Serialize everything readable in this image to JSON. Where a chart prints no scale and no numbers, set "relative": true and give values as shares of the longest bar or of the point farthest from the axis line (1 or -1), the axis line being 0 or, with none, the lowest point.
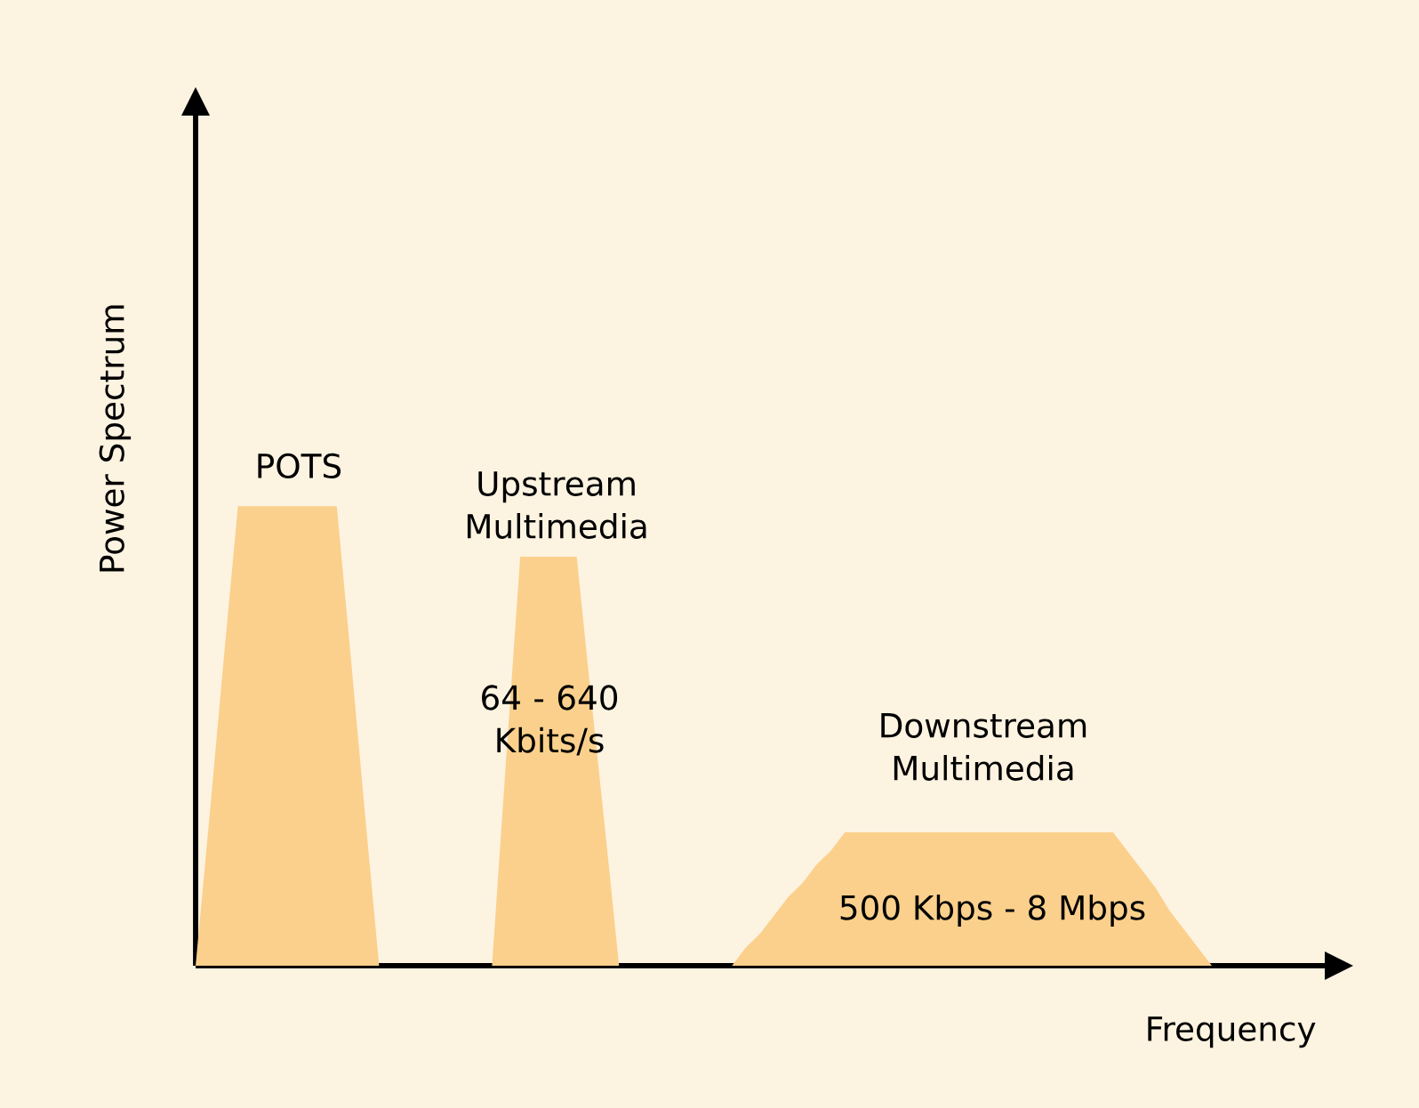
{
  "chart_data": {
    "type": "area",
    "relative": true,
    "xlabel": "Frequency",
    "ylabel": "Power Spectrum",
    "color": "#fbd08c",
    "categories": [
      null,
      null,
      null,
      null,
      null,
      null,
      null,
      null,
      null,
      null,
      null,
      null,
      null,
      null,
      null,
      null,
      null,
      null,
      null,
      null,
      null,
      null,
      null,
      null,
      null,
      null,
      null,
      null,
      null,
      null,
      null,
      null,
      null,
      null,
      null,
      null,
      null,
      null,
      null,
      null,
      null,
      null,
      null,
      null,
      null,
      null,
      null,
      null,
      null,
      null,
      null,
      null,
      null,
      null,
      null,
      null,
      null,
      null,
      null,
      null,
      null,
      null,
      null,
      null,
      null,
      null,
      null,
      null,
      null,
      null,
      null,
      null,
      null,
      null,
      null,
      null,
      null,
      null,
      null,
      null
    ],
    "values": [
      0,
      0.33,
      0.67,
      1,
      1,
      1,
      1,
      1,
      1,
      1,
      1,
      0.67,
      0.33,
      0,
      0,
      0,
      0,
      0,
      0,
      0,
      0,
      0,
      0.45,
      0.89,
      0.89,
      0.89,
      0.89,
      0.89,
      0.59,
      0.3,
      0,
      0,
      0,
      0,
      0,
      0,
      0,
      0,
      0,
      0.04,
      0.07,
      0.11,
      0.15,
      0.18,
      0.22,
      0.25,
      0.29,
      0.29,
      0.29,
      0.29,
      0.29,
      0.29,
      0.29,
      0.29,
      0.29,
      0.29,
      0.29,
      0.29,
      0.29,
      0.29,
      0.29,
      0.29,
      0.29,
      0.29,
      0.29,
      0.29,
      0.25,
      0.21,
      0.17,
      0.12,
      0.08,
      0.04,
      0,
      0,
      0,
      0,
      0,
      0,
      0,
      0
    ],
    "annotations": [
      "POTS",
      "Upstream Multimedia",
      "64 - 640 Kbits/s",
      "Downstream Multimedia",
      "500 Kbps - 8 Mbps"
    ]
  }
}
